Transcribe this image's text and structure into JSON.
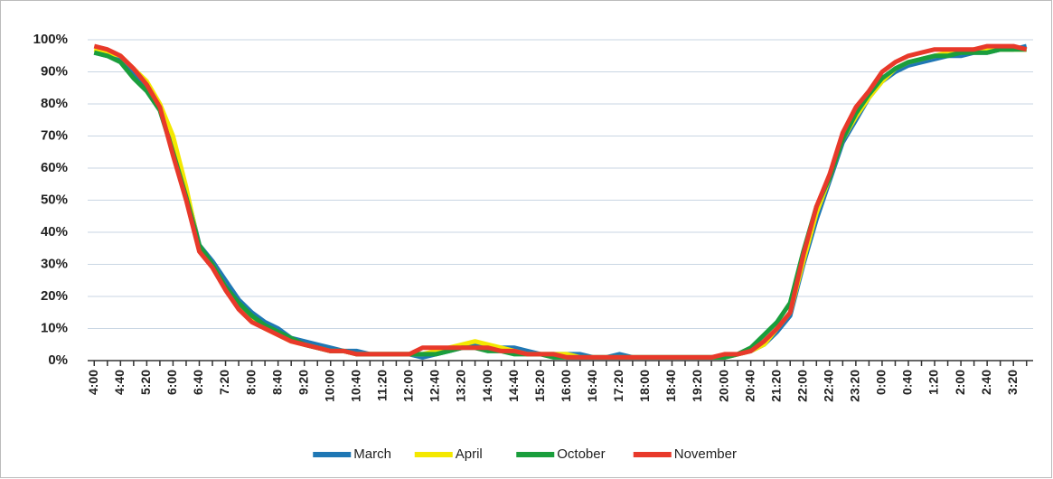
{
  "chart_data": {
    "type": "line",
    "categories": [
      "4:00",
      null,
      "4:40",
      null,
      "5:20",
      null,
      "6:00",
      null,
      "6:40",
      null,
      "7:20",
      null,
      "8:00",
      null,
      "8:40",
      null,
      "9:20",
      null,
      "10:00",
      null,
      "10:40",
      null,
      "11:20",
      null,
      "12:00",
      null,
      "12:40",
      null,
      "13:20",
      null,
      "14:00",
      null,
      "14:40",
      null,
      "15:20",
      null,
      "16:00",
      null,
      "16:40",
      null,
      "17:20",
      null,
      "18:00",
      null,
      "18:40",
      null,
      "19:20",
      null,
      "20:00",
      null,
      "20:40",
      null,
      "21:20",
      null,
      "22:00",
      null,
      "22:40",
      null,
      "23:20",
      null,
      "0:00",
      null,
      "0:40",
      null,
      "1:20",
      null,
      "2:00",
      null,
      "2:40",
      null,
      "3:20",
      null
    ],
    "series": [
      {
        "name": "March",
        "color": "#1f77b4",
        "values": [
          96,
          95,
          94,
          89,
          85,
          79,
          66,
          53,
          36,
          31,
          25,
          19,
          15,
          12,
          10,
          7,
          6,
          5,
          4,
          3,
          3,
          2,
          2,
          2,
          2,
          1,
          2,
          3,
          4,
          5,
          4,
          4,
          4,
          3,
          2,
          2,
          2,
          2,
          1,
          1,
          2,
          1,
          1,
          1,
          1,
          1,
          1,
          1,
          1,
          2,
          3,
          5,
          9,
          14,
          30,
          44,
          56,
          68,
          75,
          82,
          87,
          90,
          92,
          93,
          94,
          95,
          95,
          96,
          96,
          97,
          97,
          98
        ]
      },
      {
        "name": "April",
        "color": "#f4e800",
        "values": [
          97,
          96,
          95,
          91,
          87,
          80,
          70,
          54,
          35,
          30,
          23,
          17,
          13,
          10,
          8,
          6,
          5,
          4,
          3,
          3,
          2,
          2,
          2,
          2,
          2,
          2,
          3,
          4,
          5,
          6,
          5,
          4,
          3,
          2,
          2,
          2,
          2,
          1,
          1,
          1,
          1,
          1,
          1,
          1,
          1,
          1,
          1,
          1,
          1,
          2,
          3,
          5,
          10,
          15,
          31,
          46,
          57,
          69,
          76,
          82,
          87,
          91,
          93,
          94,
          95,
          96,
          96,
          97,
          97,
          97,
          97,
          97
        ]
      },
      {
        "name": "October",
        "color": "#1a9e3c",
        "values": [
          96,
          95,
          93,
          88,
          84,
          78,
          65,
          51,
          36,
          30,
          23,
          18,
          14,
          11,
          9,
          7,
          5,
          4,
          3,
          3,
          2,
          2,
          2,
          2,
          2,
          2,
          2,
          3,
          4,
          4,
          3,
          3,
          2,
          2,
          2,
          1,
          1,
          1,
          1,
          1,
          1,
          1,
          1,
          1,
          1,
          1,
          1,
          1,
          1,
          2,
          4,
          8,
          12,
          18,
          34,
          48,
          57,
          69,
          77,
          83,
          88,
          91,
          93,
          94,
          95,
          95,
          96,
          96,
          96,
          97,
          97,
          97
        ]
      },
      {
        "name": "November",
        "color": "#e8392a",
        "values": [
          98,
          97,
          95,
          91,
          86,
          79,
          64,
          50,
          34,
          29,
          22,
          16,
          12,
          10,
          8,
          6,
          5,
          4,
          3,
          3,
          2,
          2,
          2,
          2,
          2,
          4,
          4,
          4,
          4,
          4,
          4,
          3,
          3,
          2,
          2,
          2,
          1,
          1,
          1,
          1,
          1,
          1,
          1,
          1,
          1,
          1,
          1,
          1,
          2,
          2,
          3,
          6,
          10,
          15,
          33,
          48,
          58,
          71,
          79,
          84,
          90,
          93,
          95,
          96,
          97,
          97,
          97,
          97,
          98,
          98,
          98,
          97
        ]
      }
    ],
    "ylim": [
      0,
      100
    ],
    "yticks": [
      {
        "value": 0,
        "label": "0%"
      },
      {
        "value": 10,
        "label": "10%"
      },
      {
        "value": 20,
        "label": "20%"
      },
      {
        "value": 30,
        "label": "30%"
      },
      {
        "value": 40,
        "label": "40%"
      },
      {
        "value": 50,
        "label": "50%"
      },
      {
        "value": 60,
        "label": "60%"
      },
      {
        "value": 70,
        "label": "70%"
      },
      {
        "value": 80,
        "label": "80%"
      },
      {
        "value": 90,
        "label": "90%"
      },
      {
        "value": 100,
        "label": "100%"
      }
    ],
    "grid": true,
    "legend": "bottom"
  }
}
